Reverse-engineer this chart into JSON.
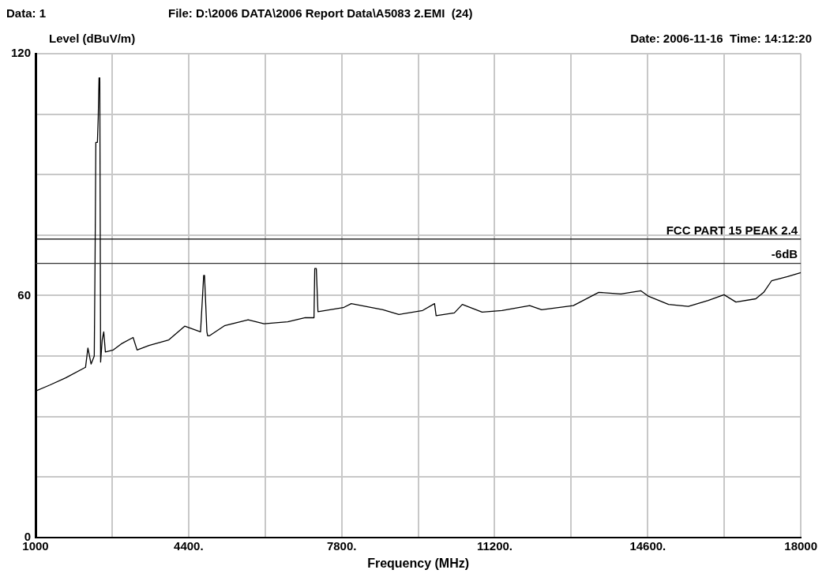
{
  "chart_data": {
    "type": "line",
    "title": "File: D:\\2006 DATA\\2006 Report Data\\A5083 2.EMI  (24)",
    "subtitle": "Date: 2006-11-16  Time: 14:12:20",
    "ylabel": "Level (dBuV/m)",
    "xlabel": "Frequency (MHz)",
    "annotations": [
      "Data: 1"
    ],
    "x": [
      1000,
      1317,
      1670,
      2110,
      2163,
      2233,
      2304,
      2322,
      2339,
      2374,
      2392,
      2410,
      2427,
      2445,
      2480,
      2515,
      2551,
      2727,
      2903,
      3167,
      3255,
      3520,
      3960,
      4313,
      4665,
      4735,
      4753,
      4806,
      4824,
      4859,
      5194,
      5722,
      6075,
      6603,
      6991,
      7185,
      7202,
      7237,
      7273,
      7836,
      8013,
      8717,
      9070,
      9599,
      9863,
      9898,
      10303,
      10480,
      10920,
      11361,
      11977,
      12242,
      12946,
      13510,
      14004,
      14444,
      14620,
      15061,
      15501,
      15942,
      16294,
      16558,
      16999,
      17175,
      17352,
      17704,
      18000
    ],
    "series": [
      {
        "color": "#000000",
        "values": [
          36.3,
          37.8,
          39.6,
          42.2,
          47,
          43,
          45,
          69,
          98,
          98,
          104,
          114,
          114,
          43.5,
          49,
          51,
          46,
          46.5,
          48,
          49.6,
          46.5,
          47.6,
          49,
          52.4,
          51,
          65,
          65,
          51,
          50,
          50,
          52.5,
          54,
          53,
          53.5,
          54.5,
          54.5,
          66.7,
          66.7,
          56,
          57,
          58,
          56.5,
          55.3,
          56.3,
          58,
          55,
          55.7,
          57.8,
          55.9,
          56.3,
          57.5,
          56.5,
          57.5,
          60.8,
          60.4,
          61.2,
          59.8,
          57.8,
          57.3,
          58.8,
          60.2,
          58.4,
          59.2,
          60.8,
          63.7,
          64.7,
          65.7
        ]
      }
    ],
    "xlim": [
      1000,
      18000
    ],
    "xticks": [
      1000,
      {
        "value": 2700,
        "label": null
      },
      {
        "value": 4400,
        "label": "4400."
      },
      {
        "value": 6100,
        "label": null
      },
      {
        "value": 7800,
        "label": "7800."
      },
      {
        "value": 9500,
        "label": null
      },
      {
        "value": 11200,
        "label": "11200."
      },
      {
        "value": 12900,
        "label": null
      },
      {
        "value": 14600,
        "label": "14600."
      },
      {
        "value": 16300,
        "label": null
      },
      18000
    ],
    "ylim": [
      0,
      120
    ],
    "yticks": [
      0,
      {
        "value": 15,
        "label": null
      },
      {
        "value": 30,
        "label": null
      },
      {
        "value": 45,
        "label": null
      },
      60,
      {
        "value": 75,
        "label": null
      },
      {
        "value": 90,
        "label": null
      },
      {
        "value": 105,
        "label": null
      },
      120
    ],
    "ref_lines": [
      {
        "axis": "y",
        "value": 74,
        "label": "FCC PART 15 PEAK 2.4",
        "color": "#000000"
      },
      {
        "axis": "y",
        "value": 68,
        "label": "-6dB",
        "color": "#333333"
      }
    ],
    "grid": true,
    "legend": false,
    "marker": "none",
    "line_style": "solid"
  }
}
